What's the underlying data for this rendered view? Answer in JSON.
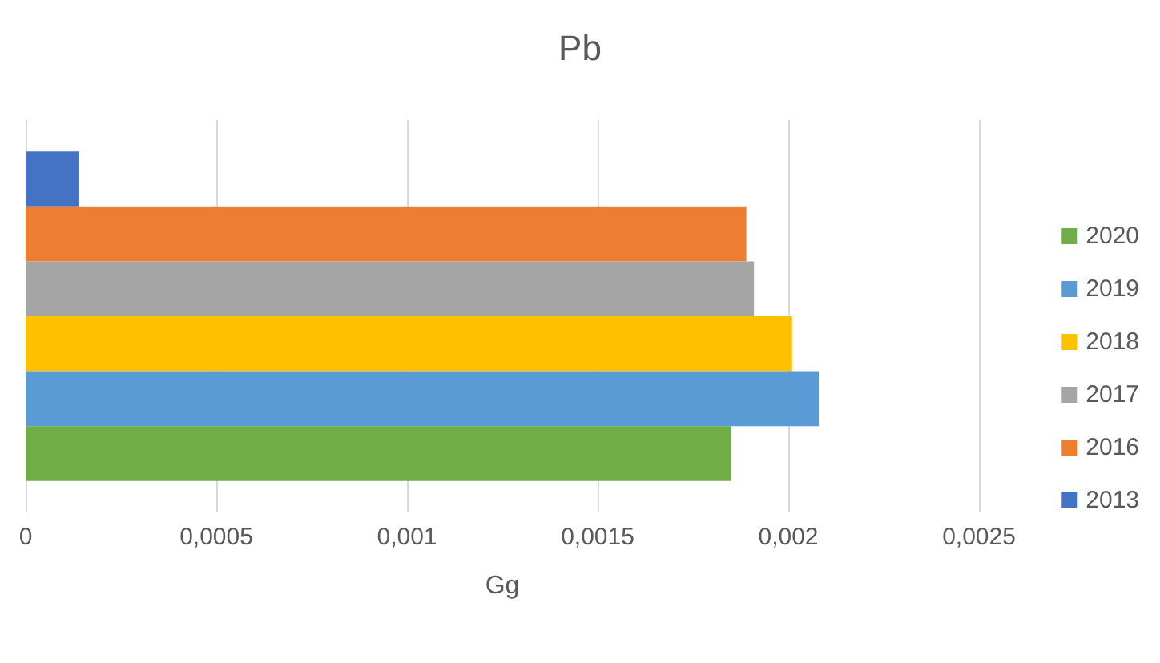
{
  "chart_data": {
    "type": "bar",
    "title": "Pb",
    "xlabel": "Gg",
    "orientation": "horizontal",
    "categories": [
      null
    ],
    "series": [
      {
        "name": "2013",
        "color": "#4472c4",
        "values": [
          0.00014
        ]
      },
      {
        "name": "2016",
        "color": "#ed7d31",
        "values": [
          0.00189
        ]
      },
      {
        "name": "2017",
        "color": "#a5a5a5",
        "values": [
          0.00191
        ]
      },
      {
        "name": "2018",
        "color": "#ffc000",
        "values": [
          0.00201
        ]
      },
      {
        "name": "2019",
        "color": "#5b9bd5",
        "values": [
          0.00208
        ]
      },
      {
        "name": "2020",
        "color": "#70ad47",
        "values": [
          0.00185
        ]
      }
    ],
    "xlim": [
      0,
      0.0025
    ],
    "xticks": [
      {
        "value": 0,
        "label": "0"
      },
      {
        "value": 0.0005,
        "label": "0,0005"
      },
      {
        "value": 0.001,
        "label": "0,001"
      },
      {
        "value": 0.0015,
        "label": "0,0015"
      },
      {
        "value": 0.002,
        "label": "0,002"
      },
      {
        "value": 0.0025,
        "label": "0,0025"
      }
    ],
    "grid": "x",
    "legend": "right"
  }
}
